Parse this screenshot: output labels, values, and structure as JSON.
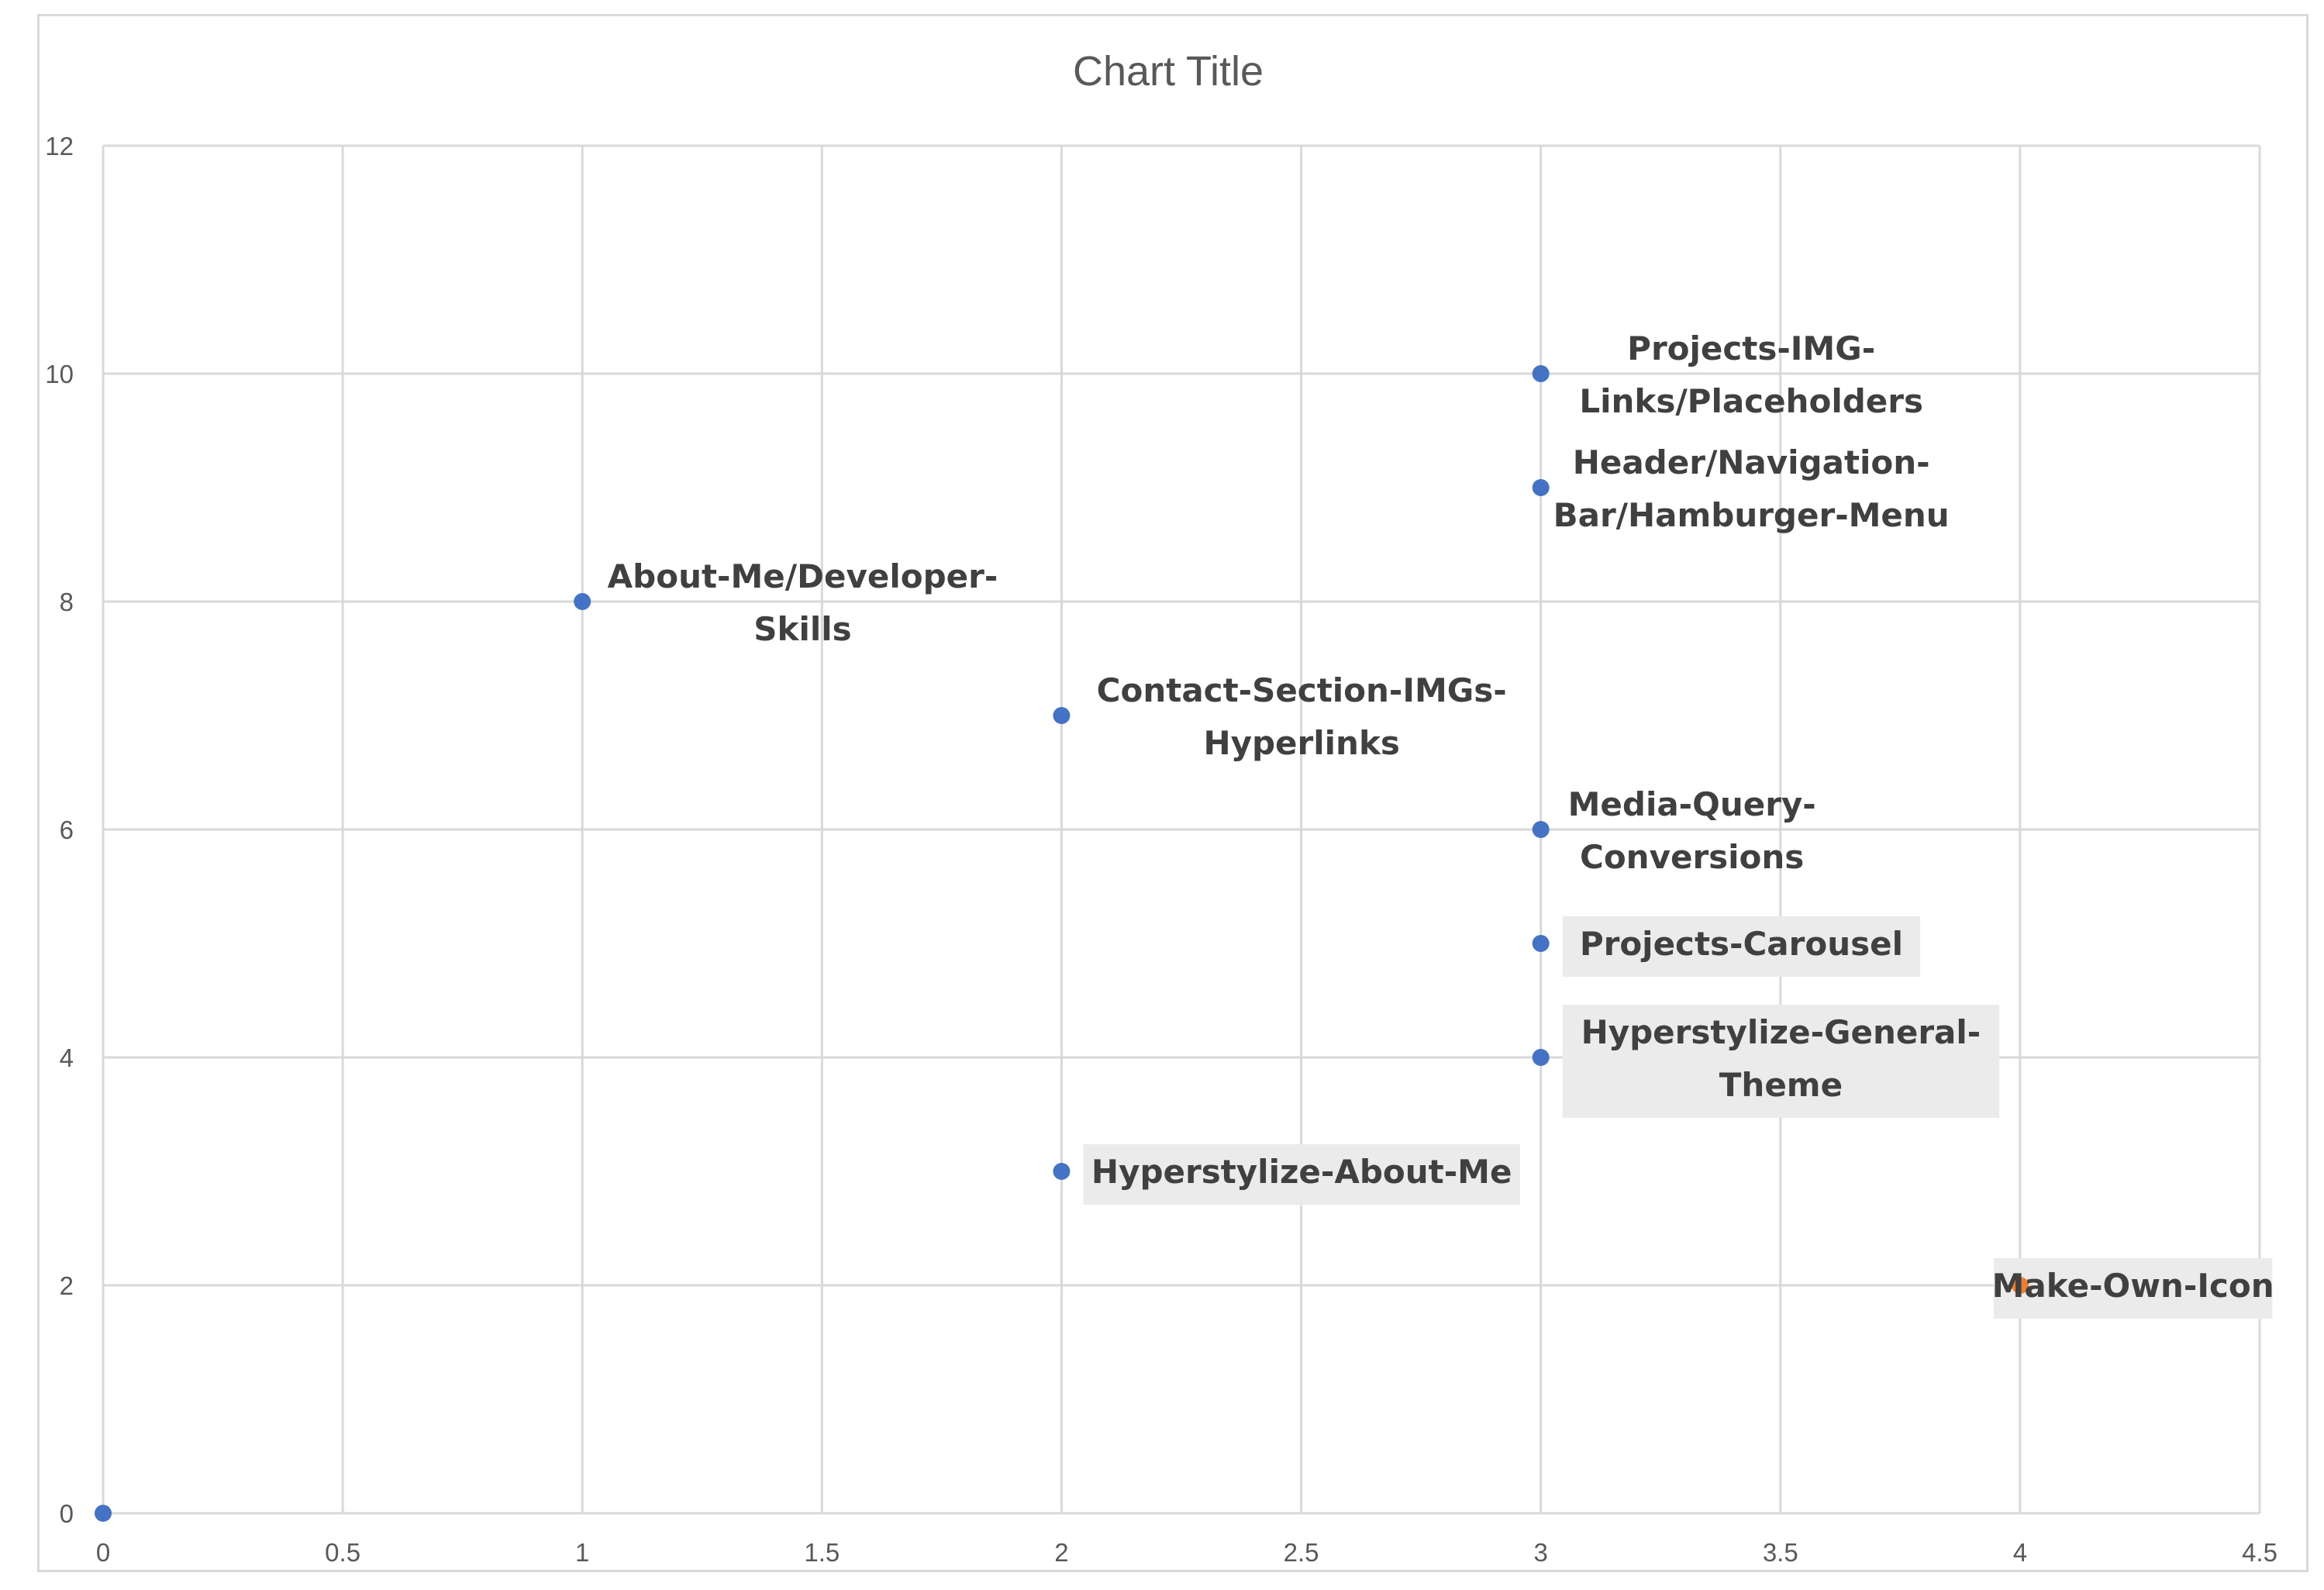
{
  "chart_data": {
    "type": "scatter",
    "title": "Chart Title",
    "xlabel": "",
    "ylabel": "",
    "xlim": [
      0,
      4.5
    ],
    "ylim": [
      0,
      12
    ],
    "x_ticks": [
      "0",
      "0.5",
      "1",
      "1.5",
      "2",
      "2.5",
      "3",
      "3.5",
      "4",
      "4.5"
    ],
    "y_ticks": [
      "0",
      "2",
      "4",
      "6",
      "8",
      "10",
      "12"
    ],
    "grid": true,
    "legend": "none",
    "colors": {
      "default": "#4472C4",
      "highlight": "#ED7D31",
      "grid": "#d9d9d9",
      "text": "#595959",
      "label_bg": "#ebebeb"
    },
    "points": [
      {
        "x": 0,
        "y": 0,
        "label": []
      },
      {
        "x": 1,
        "y": 8,
        "label": [
          "About-Me/Developer-",
          "Skills"
        ]
      },
      {
        "x": 2,
        "y": 7,
        "label": [
          "Contact-Section-IMGs-",
          "Hyperlinks"
        ]
      },
      {
        "x": 2,
        "y": 3,
        "label": [
          "Hyperstylize-About-Me"
        ],
        "label_box": true
      },
      {
        "x": 3,
        "y": 10,
        "label": [
          "Projects-IMG-",
          "Links/Placeholders"
        ]
      },
      {
        "x": 3,
        "y": 9,
        "label": [
          "Header/Navigation-",
          "Bar/Hamburger-Menu"
        ]
      },
      {
        "x": 3,
        "y": 6,
        "label": [
          "Media-Query-",
          "Conversions"
        ]
      },
      {
        "x": 3,
        "y": 5,
        "label": [
          "Projects-Carousel"
        ],
        "label_box": true
      },
      {
        "x": 3,
        "y": 4,
        "label": [
          "Hyperstylize-General-",
          "Theme"
        ],
        "label_box": true
      },
      {
        "x": 4,
        "y": 2,
        "label": [
          "Make-Own-Icon"
        ],
        "label_box": true,
        "highlight": true
      }
    ]
  }
}
